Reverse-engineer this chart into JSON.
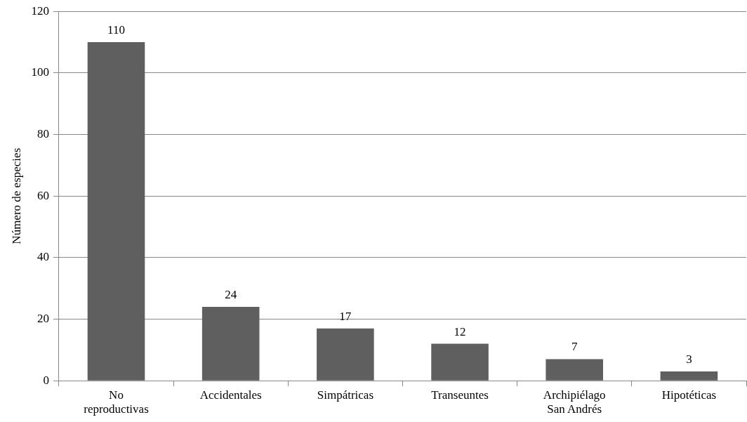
{
  "chart_data": {
    "type": "bar",
    "ylabel": "Número de especies",
    "categories": [
      "No reproductivas",
      "Accidentales",
      "Simpátricas",
      "Transeuntes",
      "Archipiélago San Andrés",
      "Hipotéticas"
    ],
    "values": [
      110,
      24,
      17,
      12,
      7,
      3
    ],
    "color": "#5f5f5f",
    "ylim": [
      0,
      120
    ],
    "yticks": [
      0,
      20,
      40,
      60,
      80,
      100,
      120
    ],
    "grid": "y",
    "data_labels": true
  }
}
